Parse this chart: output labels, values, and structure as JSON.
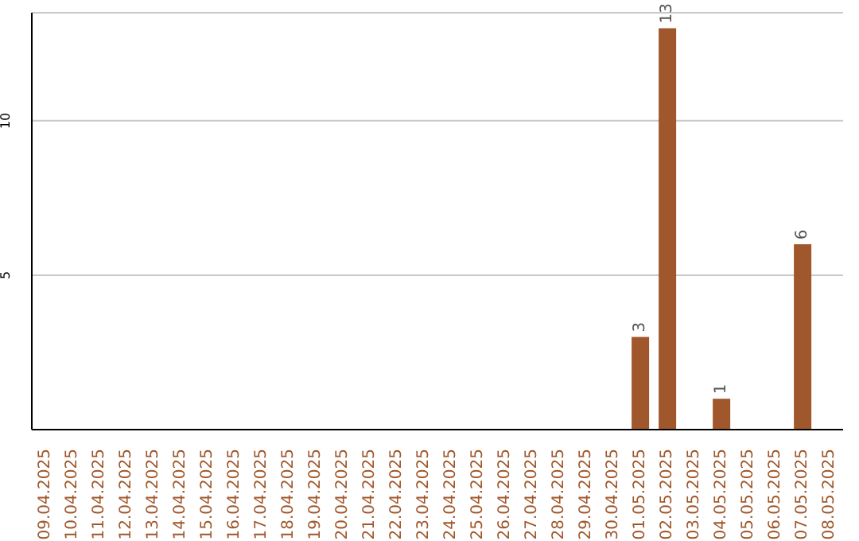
{
  "chart_data": {
    "type": "bar",
    "categories": [
      "09.04.2025",
      "10.04.2025",
      "11.04.2025",
      "12.04.2025",
      "13.04.2025",
      "14.04.2025",
      "15.04.2025",
      "16.04.2025",
      "17.04.2025",
      "18.04.2025",
      "19.04.2025",
      "20.04.2025",
      "21.04.2025",
      "22.04.2025",
      "23.04.2025",
      "24.04.2025",
      "25.04.2025",
      "26.04.2025",
      "27.04.2025",
      "28.04.2025",
      "29.04.2025",
      "30.04.2025",
      "01.05.2025",
      "02.05.2025",
      "03.05.2025",
      "04.05.2025",
      "05.05.2025",
      "06.05.2025",
      "07.05.2025",
      "08.05.2025"
    ],
    "values": [
      0,
      0,
      0,
      0,
      0,
      0,
      0,
      0,
      0,
      0,
      0,
      0,
      0,
      0,
      0,
      0,
      0,
      0,
      0,
      0,
      0,
      0,
      3,
      13,
      0,
      1,
      0,
      0,
      6,
      0
    ],
    "value_labels": [
      null,
      null,
      null,
      null,
      null,
      null,
      null,
      null,
      null,
      null,
      null,
      null,
      null,
      null,
      null,
      null,
      null,
      null,
      null,
      null,
      null,
      null,
      "3",
      "13",
      null,
      "1",
      null,
      null,
      "6",
      null
    ],
    "color": "#a0572b",
    "ylim": [
      0,
      13.5
    ],
    "yticks": [
      5,
      10
    ],
    "grid": "y",
    "legend": false
  }
}
